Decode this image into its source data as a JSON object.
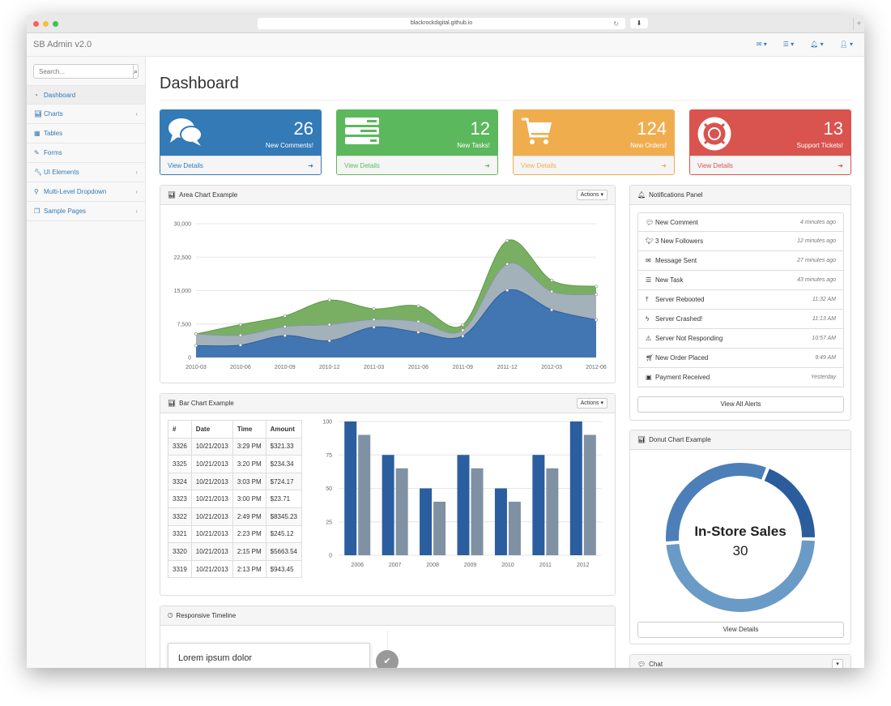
{
  "browser": {
    "url": "blackrockdigital.github.io"
  },
  "topnav": {
    "brand": "SB Admin v2.0",
    "icons": [
      "envelope-icon",
      "tasks-icon",
      "bell-icon",
      "user-icon"
    ]
  },
  "sidebar": {
    "search_placeholder": "Search...",
    "items": [
      {
        "label": "Dashboard",
        "icon": "dashboard-icon",
        "has_caret": false
      },
      {
        "label": "Charts",
        "icon": "bar-chart-icon",
        "has_caret": true
      },
      {
        "label": "Tables",
        "icon": "table-icon",
        "has_caret": false
      },
      {
        "label": "Forms",
        "icon": "edit-icon",
        "has_caret": false
      },
      {
        "label": "UI Elements",
        "icon": "wrench-icon",
        "has_caret": true
      },
      {
        "label": "Multi-Level Dropdown",
        "icon": "sitemap-icon",
        "has_caret": true
      },
      {
        "label": "Sample Pages",
        "icon": "files-icon",
        "has_caret": true
      }
    ]
  },
  "page": {
    "title": "Dashboard"
  },
  "stats": [
    {
      "number": "26",
      "label": "New Comments!",
      "link": "View Details",
      "color": "#337ab7",
      "icon": "comments-icon"
    },
    {
      "number": "12",
      "label": "New Tasks!",
      "link": "View Details",
      "color": "#5cb85c",
      "icon": "tasks-icon"
    },
    {
      "number": "124",
      "label": "New Orders!",
      "link": "View Details",
      "color": "#f0ad4e",
      "icon": "shopping-cart-icon"
    },
    {
      "number": "13",
      "label": "Support Tickets!",
      "link": "View Details",
      "color": "#d9534f",
      "icon": "support-icon"
    }
  ],
  "area_panel": {
    "title": "Area Chart Example",
    "actions": "Actions"
  },
  "bar_panel": {
    "title": "Bar Chart Example",
    "actions": "Actions"
  },
  "timeline_panel": {
    "title": "Responsive Timeline",
    "card_title": "Lorem ipsum dolor"
  },
  "notifications": {
    "title": "Notifications Panel",
    "items": [
      {
        "label": "New Comment",
        "time": "4 minutes ago",
        "icon": "comment-icon"
      },
      {
        "label": "3 New Followers",
        "time": "12 minutes ago",
        "icon": "twitter-icon"
      },
      {
        "label": "Message Sent",
        "time": "27 minutes ago",
        "icon": "envelope-icon"
      },
      {
        "label": "New Task",
        "time": "43 minutes ago",
        "icon": "tasks-icon"
      },
      {
        "label": "Server Rebooted",
        "time": "11:32 AM",
        "icon": "upload-icon"
      },
      {
        "label": "Server Crashed!",
        "time": "11:13 AM",
        "icon": "bolt-icon"
      },
      {
        "label": "Server Not Responding",
        "time": "10:57 AM",
        "icon": "warning-icon"
      },
      {
        "label": "New Order Placed",
        "time": "9:49 AM",
        "icon": "shopping-cart-icon"
      },
      {
        "label": "Payment Received",
        "time": "Yesterday",
        "icon": "money-icon"
      }
    ],
    "view_all": "View All Alerts"
  },
  "donut_panel": {
    "title": "Donut Chart Example",
    "center_label": "In-Store Sales",
    "center_value": "30",
    "button": "View Details"
  },
  "chat_panel": {
    "title": "Chat"
  },
  "transactions": {
    "headers": [
      "#",
      "Date",
      "Time",
      "Amount"
    ],
    "rows": [
      [
        "3326",
        "10/21/2013",
        "3:29 PM",
        "$321.33"
      ],
      [
        "3325",
        "10/21/2013",
        "3:20 PM",
        "$234.34"
      ],
      [
        "3324",
        "10/21/2013",
        "3:03 PM",
        "$724.17"
      ],
      [
        "3323",
        "10/21/2013",
        "3:00 PM",
        "$23.71"
      ],
      [
        "3322",
        "10/21/2013",
        "2:49 PM",
        "$8345.23"
      ],
      [
        "3321",
        "10/21/2013",
        "2:23 PM",
        "$245.12"
      ],
      [
        "3320",
        "10/21/2013",
        "2:15 PM",
        "$5663.54"
      ],
      [
        "3319",
        "10/21/2013",
        "2:13 PM",
        "$943.45"
      ]
    ]
  },
  "chart_data": [
    {
      "type": "area",
      "x": [
        "2010-03",
        "2010-06",
        "2010-09",
        "2010-12",
        "2011-03",
        "2011-06",
        "2011-09",
        "2011-12",
        "2012-03",
        "2012-06"
      ],
      "series": [
        {
          "values": [
            2666,
            2778,
            4912,
            3767,
            6810,
            5670,
            4820,
            15073,
            10687,
            8432
          ],
          "color": "#3d73b2"
        },
        {
          "values": [
            2600,
            2200,
            2000,
            3600,
            1700,
            2400,
            1300,
            5900,
            4100,
            5700
          ],
          "color": "#a5b1bf"
        },
        {
          "values": [
            0,
            2400,
            2400,
            5500,
            2400,
            3500,
            1200,
            5200,
            2500,
            1800
          ],
          "color": "#72ab5b"
        }
      ],
      "y_ticks": [
        "0",
        "7,500",
        "15,000",
        "22,500",
        "30,000"
      ],
      "ylim": [
        0,
        30000
      ],
      "grid": true
    },
    {
      "type": "bar",
      "categories": [
        "2006",
        "2007",
        "2008",
        "2009",
        "2010",
        "2011",
        "2012"
      ],
      "series": [
        {
          "values": [
            100,
            75,
            50,
            75,
            50,
            75,
            100
          ],
          "color": "#2a5e9f"
        },
        {
          "values": [
            90,
            65,
            40,
            65,
            40,
            65,
            90
          ],
          "color": "#7f91a3"
        }
      ],
      "y_ticks": [
        "0",
        "25",
        "50",
        "75",
        "100"
      ],
      "ylim": [
        0,
        100
      ],
      "grid": true
    },
    {
      "type": "pie",
      "donut": true,
      "selected": "In-Store Sales",
      "slices": [
        {
          "value": 12,
          "color": "#2b5d9c"
        },
        {
          "value": 30,
          "color": "#6a9ac6"
        },
        {
          "value": 20,
          "color": "#4c7fb8"
        }
      ]
    }
  ]
}
